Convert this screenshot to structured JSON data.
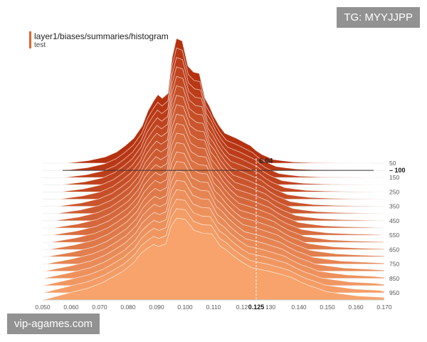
{
  "watermarks": {
    "top_right": "TG: MYYJJPP",
    "bottom_left": "vip-agames.com"
  },
  "colors": {
    "dark": "#b5310f",
    "light": "#f7a36b",
    "legend": "#e0662c",
    "guide": "#333333"
  },
  "chart_data": {
    "type": "area",
    "style": "tensorboard histogram offset ridgeline",
    "title": "layer1/biases/summaries/histogram",
    "legend": [
      "test"
    ],
    "xlim": [
      0.05,
      0.17
    ],
    "x_ticks": [
      "0.050",
      "0.060",
      "0.070",
      "0.080",
      "0.090",
      "0.100",
      "0.110",
      "0.12",
      "130",
      "0.140",
      "0.150",
      "0.160",
      "0.170"
    ],
    "step_ticks": [
      "50",
      "100",
      "150",
      "250",
      "350",
      "450",
      "550",
      "650",
      "750",
      "850",
      "950"
    ],
    "steps": [
      50,
      100,
      150,
      200,
      250,
      300,
      350,
      400,
      450,
      500,
      550,
      600,
      650,
      700,
      750,
      800,
      850,
      900,
      950,
      1000
    ],
    "hover": {
      "step": "100",
      "x": "0.125",
      "value": "6.04"
    },
    "peak_profile": {
      "x": [
        0.058,
        0.066,
        0.072,
        0.076,
        0.079,
        0.082,
        0.085,
        0.087,
        0.089,
        0.0905,
        0.092,
        0.094,
        0.0955,
        0.097,
        0.099,
        0.101,
        0.103,
        0.105,
        0.107,
        0.1085,
        0.11,
        0.112,
        0.114,
        0.116,
        0.118,
        0.1205,
        0.123,
        0.125,
        0.127,
        0.129,
        0.131,
        0.134,
        0.138,
        0.144,
        0.152,
        0.16,
        0.165
      ],
      "density": [
        0.0,
        0.02,
        0.05,
        0.09,
        0.14,
        0.2,
        0.3,
        0.42,
        0.5,
        0.55,
        0.52,
        0.56,
        0.85,
        1.0,
        0.98,
        0.78,
        0.73,
        0.72,
        0.52,
        0.46,
        0.38,
        0.3,
        0.24,
        0.22,
        0.2,
        0.17,
        0.14,
        0.1,
        0.07,
        0.05,
        0.03,
        0.02,
        0.01,
        0.005,
        0.002,
        0.0,
        0.0
      ]
    }
  }
}
